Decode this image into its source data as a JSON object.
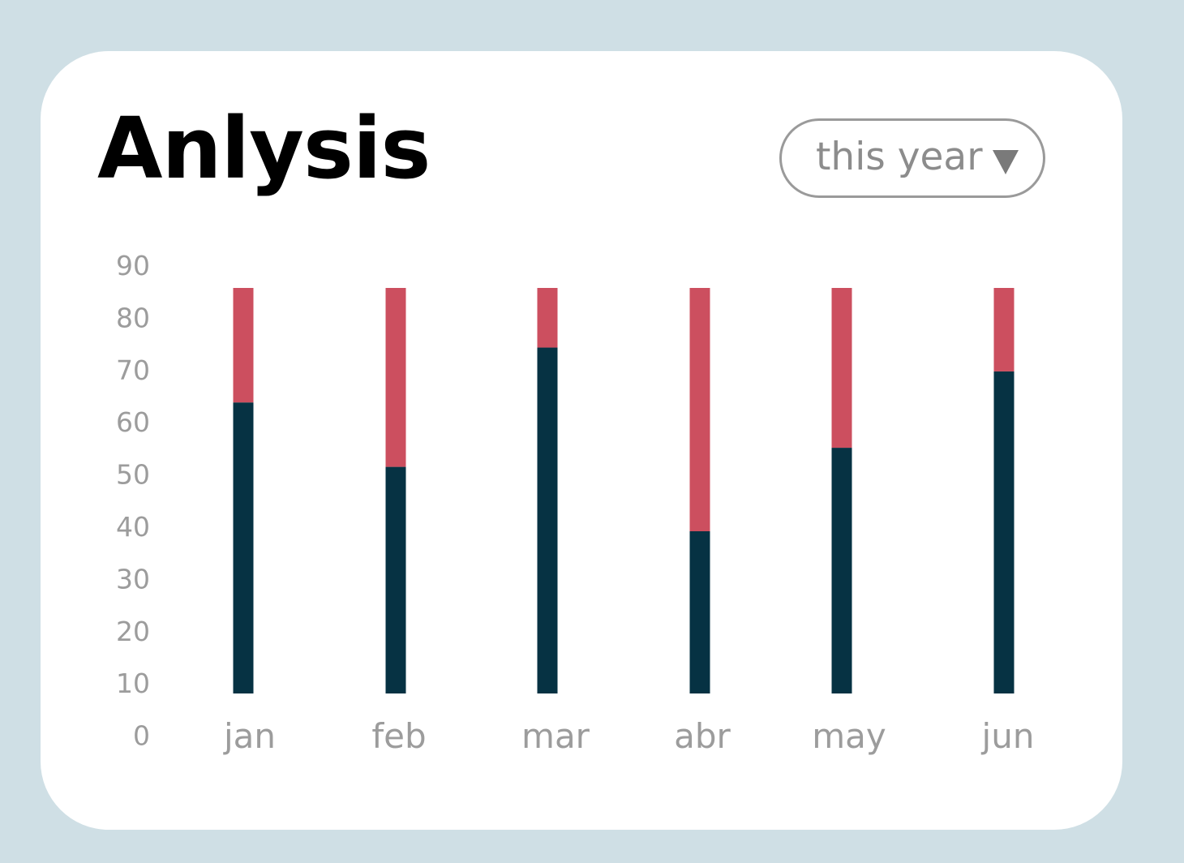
{
  "header": {
    "title": "Anlysis",
    "period_select": {
      "value": "this year",
      "caret_icon": "triangle-down-icon"
    }
  },
  "colors": {
    "background": "#cfdfe5",
    "card": "#ffffff",
    "series_1": "#063243",
    "series_2": "#cc4f5f",
    "axis_text": "#9c9c9c"
  },
  "chart_data": {
    "type": "bar",
    "stacked": true,
    "categories": [
      "jan",
      "feb",
      "mar",
      "abr",
      "may",
      "jun"
    ],
    "series": [
      {
        "values": [
          61,
          47.5,
          72.5,
          34,
          51.5,
          67.5
        ],
        "color": "#063243"
      },
      {
        "values": [
          24,
          37.5,
          12.5,
          51,
          33.5,
          17.5
        ],
        "color": "#cc4f5f"
      }
    ],
    "yticks": [
      0,
      10,
      20,
      30,
      40,
      50,
      60,
      70,
      80,
      90
    ],
    "ylim": [
      0,
      90
    ],
    "xlabel": "",
    "ylabel": "",
    "grid": false,
    "legend": false
  }
}
